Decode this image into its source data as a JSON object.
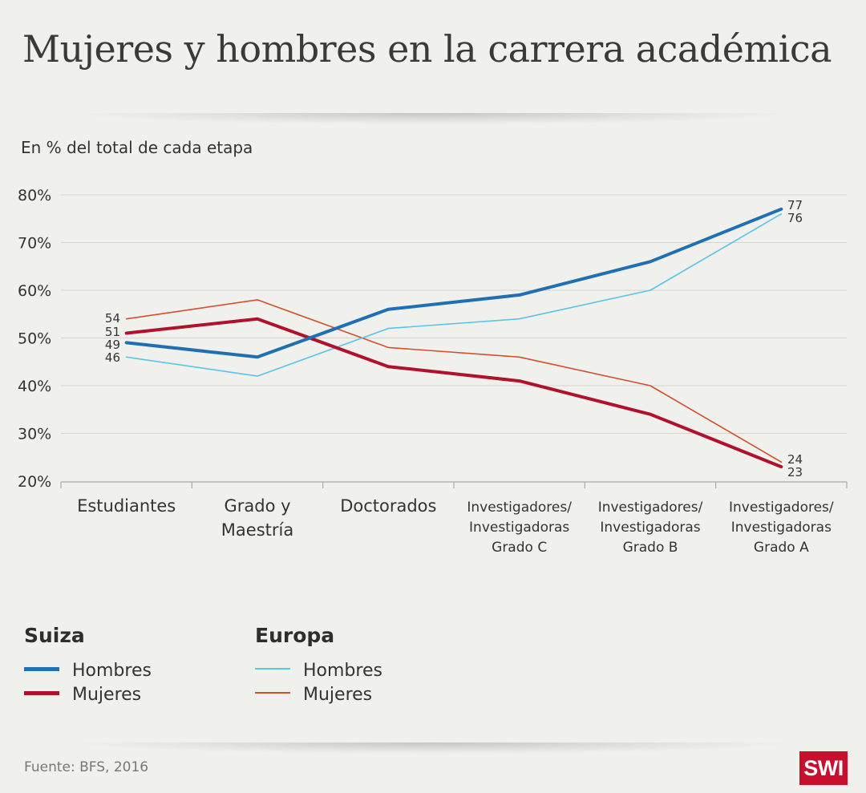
{
  "title": "Mujeres y hombres en la carrera académica",
  "subtitle": "En % del total de cada etapa",
  "source": "Fuente: BFS, 2016",
  "logo_text": "SWI",
  "legend": {
    "groups": [
      {
        "name": "Suiza",
        "items": [
          {
            "label": "Hombres",
            "color": "#1f6fb2",
            "weight": "thick"
          },
          {
            "label": "Mujeres",
            "color": "#b0112b",
            "weight": "thick"
          }
        ]
      },
      {
        "name": "Europa",
        "items": [
          {
            "label": "Hombres",
            "color": "#5bc4e8",
            "weight": "thin"
          },
          {
            "label": "Mujeres",
            "color": "#d2512b",
            "weight": "thin"
          }
        ]
      }
    ]
  },
  "chart_data": {
    "type": "line",
    "title": "Mujeres y hombres en la carrera académica",
    "ylabel": "En % del total de cada etapa",
    "ylim": [
      20,
      80
    ],
    "yticks": [
      80,
      70,
      60,
      50,
      40,
      30,
      20
    ],
    "ytick_labels": [
      "80%",
      "70%",
      "60%",
      "50%",
      "40%",
      "30%",
      "20%"
    ],
    "grid": true,
    "categories": [
      [
        "Estudiantes"
      ],
      [
        "Grado y",
        "Maestría"
      ],
      [
        "Doctorados"
      ],
      [
        "Investigadores/",
        "Investigadoras",
        "Grado C"
      ],
      [
        "Investigadores/",
        "Investigadoras",
        "Grado B"
      ],
      [
        "Investigadores/",
        "Investigadoras",
        "Grado A"
      ]
    ],
    "series": [
      {
        "name": "Europa Mujeres",
        "color": "#d2512b",
        "width": 1.6,
        "values": [
          54,
          58,
          48,
          46,
          40,
          24
        ]
      },
      {
        "name": "Europa Hombres",
        "color": "#5bc4e8",
        "width": 1.6,
        "values": [
          46,
          42,
          52,
          54,
          60,
          76
        ]
      },
      {
        "name": "Suiza Mujeres",
        "color": "#b0112b",
        "width": 4,
        "values": [
          51,
          54,
          44,
          41,
          34,
          23
        ]
      },
      {
        "name": "Suiza Hombres",
        "color": "#1f6fb2",
        "width": 4,
        "values": [
          49,
          46,
          56,
          59,
          66,
          77
        ]
      }
    ],
    "start_labels": [
      "54",
      "51",
      "49",
      "46"
    ],
    "end_labels": [
      "77",
      "76",
      "24",
      "23"
    ]
  }
}
